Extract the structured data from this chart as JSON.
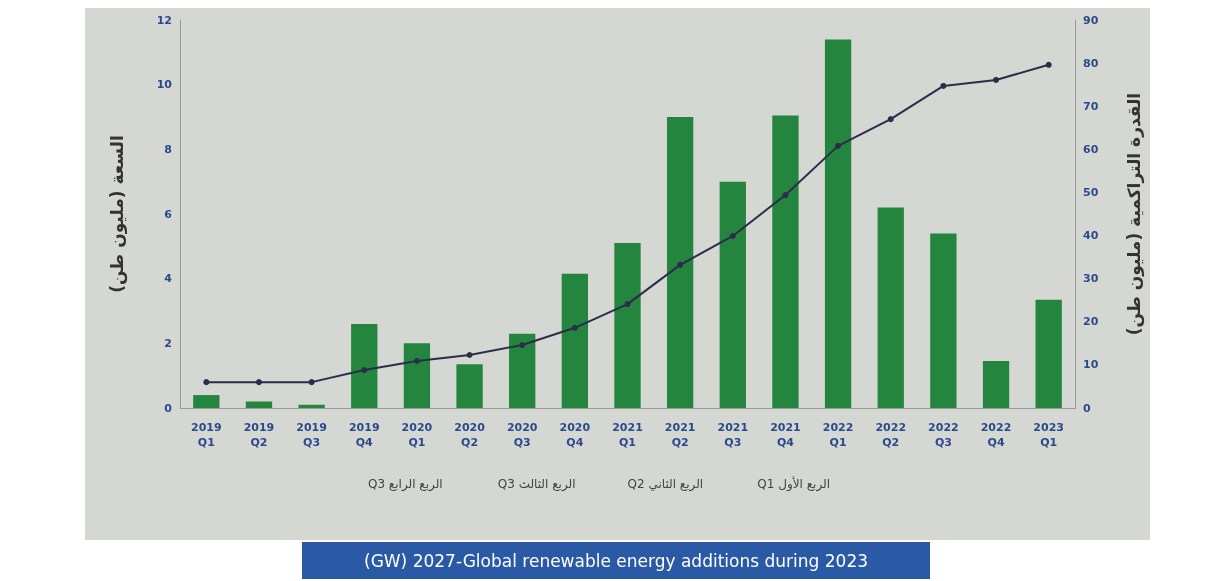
{
  "chart_data": {
    "type": "bar",
    "title": "(GW) 2027-Global renewable energy additions during 2023",
    "categories": [
      "2019\nQ1",
      "2019\nQ2",
      "2019\nQ3",
      "2019\nQ4",
      "2020\nQ1",
      "2020\nQ2",
      "2020\nQ3",
      "2020\nQ4",
      "2021\nQ1",
      "2021\nQ2",
      "2021\nQ3",
      "2021\nQ4",
      "2022\nQ1",
      "2022\nQ2",
      "2022\nQ3",
      "2022\nQ4",
      "2023\nQ1"
    ],
    "series": [
      {
        "color": "#24853f",
        "values": [
          0.4,
          0.2,
          0.1,
          2.6,
          2.0,
          1.35,
          2.3,
          4.15,
          5.1,
          9.0,
          7.0,
          9.05,
          11.4,
          6.2,
          5.4,
          1.45,
          3.35
        ]
      },
      {
        "type": "line",
        "axis": "y2",
        "color": "#2b2d4a",
        "values": [
          6,
          6,
          6,
          8.8,
          10.9,
          12.3,
          14.6,
          18.6,
          24.1,
          33.2,
          39.9,
          49.4,
          60.8,
          67.0,
          74.7,
          76.1,
          79.6
        ]
      }
    ],
    "ylabel": "السعة (مليون طن)",
    "y2label": "القدرة التراكمية (مليون طن)",
    "ylim": [
      0,
      12
    ],
    "yticks": [
      0,
      2,
      4,
      6,
      8,
      10,
      12
    ],
    "y2lim": [
      0,
      90
    ],
    "y2ticks": [
      0,
      10,
      20,
      30,
      40,
      50,
      60,
      70,
      80,
      90
    ],
    "annotations": [
      "Q3 الربع الرابع",
      "Q3 الربع الثالث",
      "Q2 الربع الثاني",
      "Q1 الربع الأول"
    ],
    "marker": "circle",
    "grid": false
  }
}
